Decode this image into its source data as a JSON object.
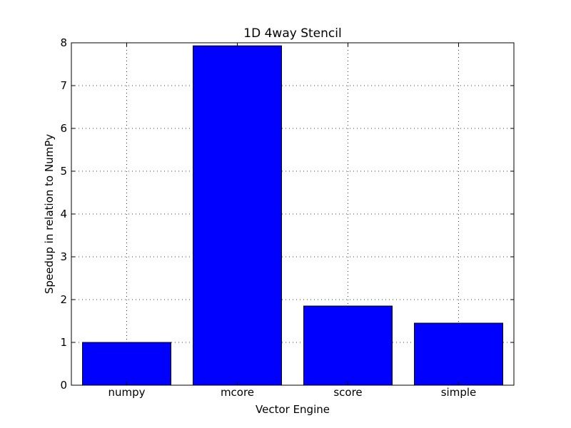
{
  "chart_data": {
    "type": "bar",
    "title": "1D 4way Stencil",
    "xlabel": "Vector Engine",
    "ylabel": "Speedup in relation to NumPy",
    "categories": [
      "numpy",
      "mcore",
      "score",
      "simple"
    ],
    "values": [
      1.0,
      7.93,
      1.85,
      1.45
    ],
    "ylim": [
      0,
      8
    ],
    "yticks": [
      0,
      1,
      2,
      3,
      4,
      5,
      6,
      7,
      8
    ],
    "grid": true,
    "bar_color": "#0000ff"
  }
}
